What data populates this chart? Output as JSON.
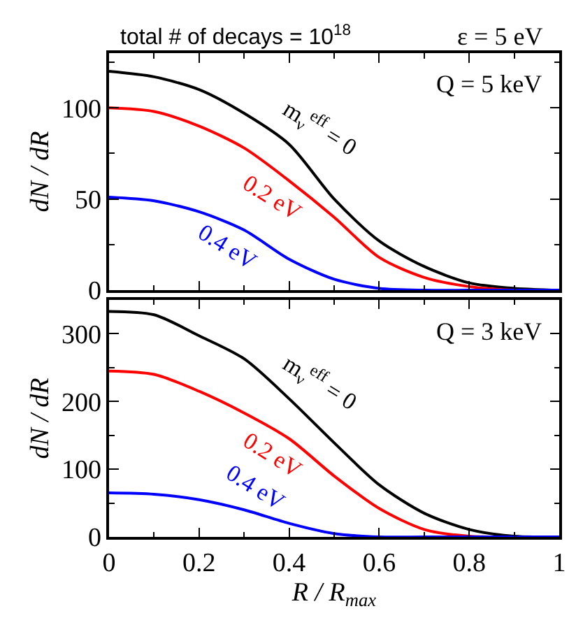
{
  "chart_data": [
    {
      "type": "line",
      "title": "total # of decays = 10$^{18}$",
      "subtitle": "ε = 5 eV",
      "ylabel": "dN / dR",
      "x": [
        0,
        0.1,
        0.2,
        0.3,
        0.4,
        0.5,
        0.6,
        0.7,
        0.8,
        0.9,
        1
      ],
      "series": [
        {
          "name": "m$_{ν}$$^{eff}$ = 0",
          "color": "#000000",
          "values": [
            120,
            117,
            110,
            97,
            80,
            50,
            27,
            13,
            4,
            1,
            0
          ]
        },
        {
          "name": "0.2 eV",
          "color": "#ff0000",
          "values": [
            100,
            98,
            90,
            78,
            60,
            40,
            18,
            7,
            2,
            0,
            0
          ]
        },
        {
          "name": "0.4 eV",
          "color": "#0000ff",
          "values": [
            51,
            49,
            43,
            33,
            17,
            6,
            1,
            0,
            0,
            0,
            0
          ]
        }
      ],
      "xlim": [
        0,
        1
      ],
      "xticks": [
        0,
        0.2,
        0.4,
        0.6,
        0.8,
        1
      ],
      "ylim": [
        0,
        130
      ],
      "yticks": [
        0,
        50,
        100
      ],
      "tick_labels": "y",
      "legend": false,
      "marker": "none",
      "line_style": "solid",
      "annotations": [
        "Q = 5 keV"
      ]
    },
    {
      "type": "line",
      "xlabel": "R / R$_{max}$",
      "ylabel": "dN / dR",
      "x": [
        0,
        0.1,
        0.2,
        0.3,
        0.4,
        0.5,
        0.6,
        0.7,
        0.8,
        0.9,
        1
      ],
      "series": [
        {
          "name": "m$_{ν}$$^{eff}$ = 0",
          "color": "#000000",
          "values": [
            333,
            328,
            297,
            263,
            204,
            139,
            77,
            35,
            11,
            1,
            0
          ]
        },
        {
          "name": "0.2 eV",
          "color": "#ff0000",
          "values": [
            245,
            240,
            215,
            183,
            145,
            90,
            42,
            11,
            1,
            0,
            0
          ]
        },
        {
          "name": "0.4 eV",
          "color": "#0000ff",
          "values": [
            65,
            63,
            55,
            40,
            20,
            5,
            0,
            0,
            0,
            0,
            0
          ]
        }
      ],
      "xlim": [
        0,
        1
      ],
      "xticks": [
        0,
        0.2,
        0.4,
        0.6,
        0.8,
        1
      ],
      "ylim": [
        0,
        350
      ],
      "yticks": [
        0,
        100,
        200,
        300
      ],
      "legend": false,
      "marker": "none",
      "line_style": "solid",
      "annotations": [
        "Q = 3 keV"
      ]
    }
  ]
}
